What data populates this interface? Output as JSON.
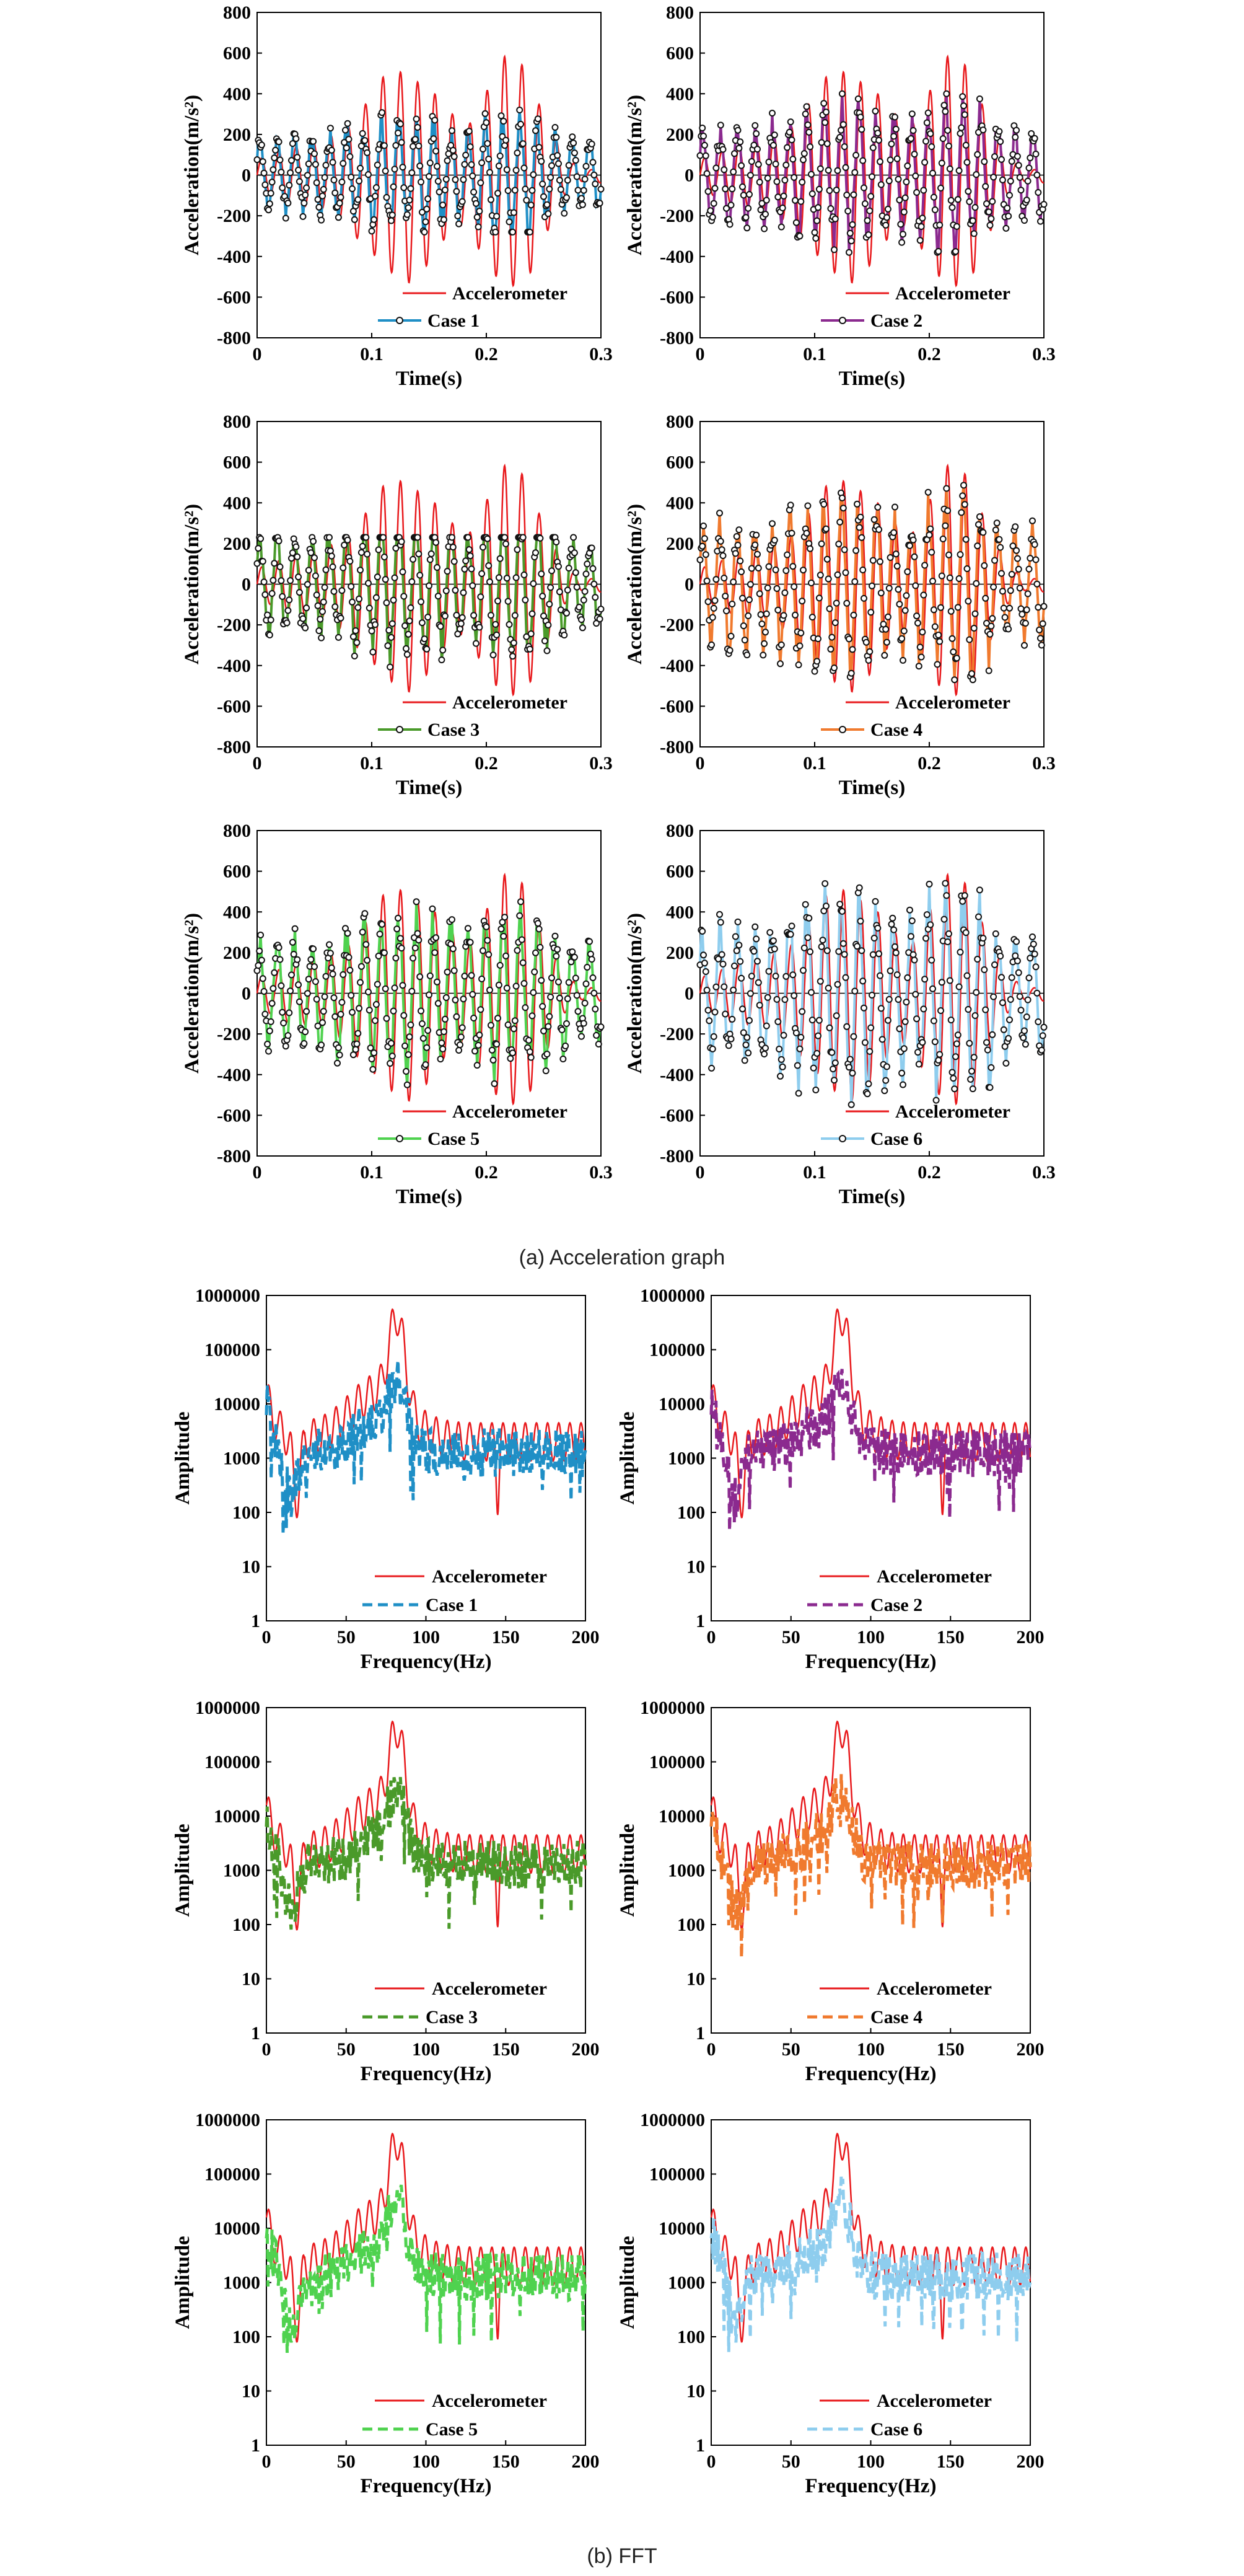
{
  "captions": {
    "top": "(a)  Acceleration  graph",
    "bottom": "(b)  FFT"
  },
  "colors": {
    "reference": "#e8191c",
    "case_1": "#1f8fc6",
    "case_2": "#8b2a8f",
    "case_3": "#4a9a2a",
    "case_4": "#f07a2e",
    "case_5": "#4fd24f",
    "case_6": "#8ecdee"
  },
  "chart_data": [
    {
      "type": "line",
      "panel": "acceleration",
      "title": "",
      "xlabel": "Time(s)",
      "ylabel": "Acceleration(m/s²)",
      "xlim": [
        0,
        0.3
      ],
      "ylim": [
        -800,
        800
      ],
      "x_ticks": [
        "0",
        "0.1",
        "0.2",
        "0.3"
      ],
      "y_ticks": [
        "-800",
        "-600",
        "-400",
        "-200",
        "0",
        "200",
        "400",
        "600",
        "800"
      ],
      "legend": [
        "Accelerometer",
        "Case 1"
      ],
      "legend_position": "bottom-right",
      "series": [
        {
          "name": "Accelerometer",
          "peak": 590,
          "min": -610
        },
        {
          "name": "Case 1",
          "peak": 320,
          "min": -280,
          "markers": "circle"
        }
      ]
    },
    {
      "type": "line",
      "panel": "acceleration",
      "title": "",
      "xlabel": "Time(s)",
      "ylabel": "Acceleration(m/s²)",
      "xlim": [
        0,
        0.3
      ],
      "ylim": [
        -800,
        800
      ],
      "x_ticks": [
        "0",
        "0.1",
        "0.2",
        "0.3"
      ],
      "y_ticks": [
        "-800",
        "-600",
        "-400",
        "-200",
        "0",
        "200",
        "400",
        "600",
        "800"
      ],
      "legend": [
        "Accelerometer",
        "Case 2"
      ],
      "legend_position": "bottom-right",
      "series": [
        {
          "name": "Accelerometer",
          "peak": 590,
          "min": -610
        },
        {
          "name": "Case 2",
          "peak": 400,
          "min": -380,
          "markers": "circle"
        }
      ]
    },
    {
      "type": "line",
      "panel": "acceleration",
      "title": "",
      "xlabel": "Time(s)",
      "ylabel": "Acceleration(m/s²)",
      "xlim": [
        0,
        0.3
      ],
      "ylim": [
        -800,
        800
      ],
      "x_ticks": [
        "0",
        "0.1",
        "0.2",
        "0.3"
      ],
      "y_ticks": [
        "-800",
        "-600",
        "-400",
        "-200",
        "0",
        "200",
        "400",
        "600",
        "800"
      ],
      "legend": [
        "Accelerometer",
        "Case 3"
      ],
      "legend_position": "bottom-right",
      "series": [
        {
          "name": "Accelerometer",
          "peak": 590,
          "min": -610
        },
        {
          "name": "Case 3",
          "peak": 230,
          "min": -420,
          "markers": "circle"
        }
      ]
    },
    {
      "type": "line",
      "panel": "acceleration",
      "title": "",
      "xlabel": "Time(s)",
      "ylabel": "Acceleration(m/s²)",
      "xlim": [
        0,
        0.3
      ],
      "ylim": [
        -800,
        800
      ],
      "x_ticks": [
        "0",
        "0.1",
        "0.2",
        "0.3"
      ],
      "y_ticks": [
        "-800",
        "-600",
        "-400",
        "-200",
        "0",
        "200",
        "400",
        "600",
        "800"
      ],
      "legend": [
        "Accelerometer",
        "Case 4"
      ],
      "legend_position": "bottom-right",
      "series": [
        {
          "name": "Accelerometer",
          "peak": 590,
          "min": -610
        },
        {
          "name": "Case 4",
          "peak": 490,
          "min": -470,
          "markers": "circle"
        }
      ]
    },
    {
      "type": "line",
      "panel": "acceleration",
      "title": "",
      "xlabel": "Time(s)",
      "ylabel": "Acceleration(m/s²)",
      "xlim": [
        0,
        0.3
      ],
      "ylim": [
        -800,
        800
      ],
      "x_ticks": [
        "0",
        "0.1",
        "0.2",
        "0.3"
      ],
      "y_ticks": [
        "-800",
        "-600",
        "-400",
        "-200",
        "0",
        "200",
        "400",
        "600",
        "800"
      ],
      "legend": [
        "Accelerometer",
        "Case 5"
      ],
      "legend_position": "bottom-right",
      "series": [
        {
          "name": "Accelerometer",
          "peak": 590,
          "min": -610
        },
        {
          "name": "Case 5",
          "peak": 450,
          "min": -450,
          "markers": "circle"
        }
      ]
    },
    {
      "type": "line",
      "panel": "acceleration",
      "title": "",
      "xlabel": "Time(s)",
      "ylabel": "Acceleration(m/s²)",
      "xlim": [
        0,
        0.3
      ],
      "ylim": [
        -800,
        800
      ],
      "x_ticks": [
        "0",
        "0.1",
        "0.2",
        "0.3"
      ],
      "y_ticks": [
        "-800",
        "-600",
        "-400",
        "-200",
        "0",
        "200",
        "400",
        "600",
        "800"
      ],
      "legend": [
        "Accelerometer",
        "Case 6"
      ],
      "legend_position": "bottom-right",
      "series": [
        {
          "name": "Accelerometer",
          "peak": 590,
          "min": -610
        },
        {
          "name": "Case 6",
          "peak": 560,
          "min": -560,
          "markers": "circle"
        }
      ]
    },
    {
      "type": "line",
      "panel": "fft",
      "title": "",
      "xlabel": "Frequency(Hz)",
      "ylabel": "Amplitude",
      "xlim": [
        0,
        200
      ],
      "ylim": [
        1,
        1000000
      ],
      "y_scale": "log",
      "x_ticks": [
        "0",
        "50",
        "100",
        "150",
        "200"
      ],
      "y_ticks": [
        "1",
        "10",
        "100",
        "1000",
        "10000",
        "100000",
        "1000000"
      ],
      "legend": [
        "Accelerometer",
        "Case 1"
      ],
      "legend_position": "bottom-right",
      "series": [
        {
          "name": "Accelerometer",
          "peak_x": 82,
          "peak": 380000
        },
        {
          "name": "Case 1",
          "peak_x": 82,
          "peak": 45000,
          "style": "dashed"
        }
      ]
    },
    {
      "type": "line",
      "panel": "fft",
      "title": "",
      "xlabel": "Frequency(Hz)",
      "ylabel": "Amplitude",
      "xlim": [
        0,
        200
      ],
      "ylim": [
        1,
        1000000
      ],
      "y_scale": "log",
      "x_ticks": [
        "0",
        "50",
        "100",
        "150",
        "200"
      ],
      "y_ticks": [
        "1",
        "10",
        "100",
        "1000",
        "10000",
        "100000",
        "1000000"
      ],
      "legend": [
        "Accelerometer",
        "Case 2"
      ],
      "legend_position": "bottom-right",
      "series": [
        {
          "name": "Accelerometer",
          "peak_x": 82,
          "peak": 380000
        },
        {
          "name": "Case 2",
          "peak_x": 82,
          "peak": 28000,
          "style": "dashed"
        }
      ]
    },
    {
      "type": "line",
      "panel": "fft",
      "title": "",
      "xlabel": "Frequency(Hz)",
      "ylabel": "Amplitude",
      "xlim": [
        0,
        200
      ],
      "ylim": [
        1,
        1000000
      ],
      "y_scale": "log",
      "x_ticks": [
        "0",
        "50",
        "100",
        "150",
        "200"
      ],
      "y_ticks": [
        "1",
        "10",
        "100",
        "1000",
        "10000",
        "100000",
        "1000000"
      ],
      "legend": [
        "Accelerometer",
        "Case 3"
      ],
      "legend_position": "bottom-right",
      "series": [
        {
          "name": "Accelerometer",
          "peak_x": 82,
          "peak": 380000
        },
        {
          "name": "Case 3",
          "peak_x": 82,
          "peak": 45000,
          "style": "dashed"
        }
      ]
    },
    {
      "type": "line",
      "panel": "fft",
      "title": "",
      "xlabel": "Frequency(Hz)",
      "ylabel": "Amplitude",
      "xlim": [
        0,
        200
      ],
      "ylim": [
        1,
        1000000
      ],
      "y_scale": "log",
      "x_ticks": [
        "0",
        "50",
        "100",
        "150",
        "200"
      ],
      "y_ticks": [
        "1",
        "10",
        "100",
        "1000",
        "10000",
        "100000",
        "1000000"
      ],
      "legend": [
        "Accelerometer",
        "Case 4"
      ],
      "legend_position": "bottom-right",
      "series": [
        {
          "name": "Accelerometer",
          "peak_x": 82,
          "peak": 380000
        },
        {
          "name": "Case 4",
          "peak_x": 82,
          "peak": 40000,
          "style": "dashed"
        }
      ]
    },
    {
      "type": "line",
      "panel": "fft",
      "title": "",
      "xlabel": "Frequency(Hz)",
      "ylabel": "Amplitude",
      "xlim": [
        0,
        200
      ],
      "ylim": [
        1,
        1000000
      ],
      "y_scale": "log",
      "x_ticks": [
        "0",
        "50",
        "100",
        "150",
        "200"
      ],
      "y_ticks": [
        "1",
        "10",
        "100",
        "1000",
        "10000",
        "100000",
        "1000000"
      ],
      "legend": [
        "Accelerometer",
        "Case 5"
      ],
      "legend_position": "bottom-right",
      "series": [
        {
          "name": "Accelerometer",
          "peak_x": 82,
          "peak": 380000
        },
        {
          "name": "Case 5",
          "peak_x": 82,
          "peak": 60000,
          "style": "dashed"
        }
      ]
    },
    {
      "type": "line",
      "panel": "fft",
      "title": "",
      "xlabel": "Frequency(Hz)",
      "ylabel": "Amplitude",
      "xlim": [
        0,
        200
      ],
      "ylim": [
        1,
        1000000
      ],
      "y_scale": "log",
      "x_ticks": [
        "0",
        "50",
        "100",
        "150",
        "200"
      ],
      "y_ticks": [
        "1",
        "10",
        "100",
        "1000",
        "10000",
        "100000",
        "1000000"
      ],
      "legend": [
        "Accelerometer",
        "Case 6"
      ],
      "legend_position": "bottom-right",
      "series": [
        {
          "name": "Accelerometer",
          "peak_x": 82,
          "peak": 380000
        },
        {
          "name": "Case 6",
          "peak_x": 82,
          "peak": 50000,
          "style": "dashed"
        }
      ]
    }
  ]
}
